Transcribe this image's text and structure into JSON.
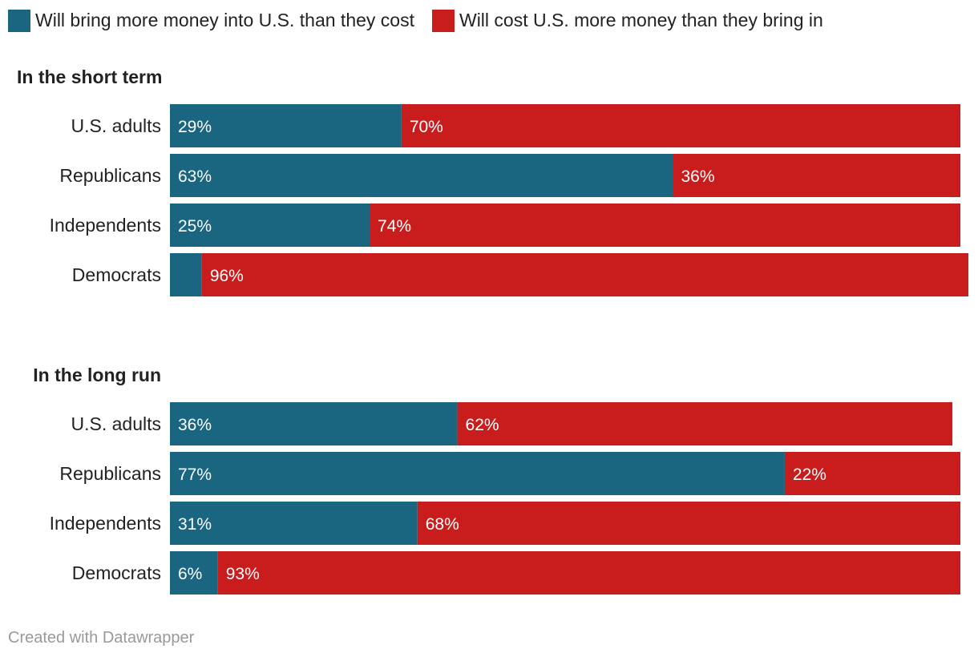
{
  "chart_data": {
    "type": "bar",
    "orientation": "horizontal",
    "stacked": true,
    "legend": [
      {
        "name": "Will bring more money into U.S. than they cost",
        "color": "#1a6580"
      },
      {
        "name": "Will cost U.S. more money than they bring in",
        "color": "#c91d1d"
      }
    ],
    "groups": [
      {
        "title": "In the short term",
        "categories": [
          "U.S. adults",
          "Republicans",
          "Independents",
          "Democrats"
        ],
        "series": [
          {
            "name": "Will bring more money into U.S. than they cost",
            "values": [
              29,
              63,
              25,
              4
            ],
            "labels": [
              "29%",
              "63%",
              "25%",
              ""
            ]
          },
          {
            "name": "Will cost U.S. more money than they bring in",
            "values": [
              70,
              36,
              74,
              96
            ],
            "labels": [
              "70%",
              "36%",
              "74%",
              "96%"
            ]
          }
        ]
      },
      {
        "title": "In the long run",
        "categories": [
          "U.S. adults",
          "Republicans",
          "Independents",
          "Democrats"
        ],
        "series": [
          {
            "name": "Will bring more money into U.S. than they cost",
            "values": [
              36,
              77,
              31,
              6
            ],
            "labels": [
              "36%",
              "77%",
              "31%",
              "6%"
            ]
          },
          {
            "name": "Will cost U.S. more money than they bring in",
            "values": [
              62,
              22,
              68,
              93
            ],
            "labels": [
              "62%",
              "22%",
              "68%",
              "93%"
            ]
          }
        ]
      }
    ],
    "xlim": [
      0,
      100
    ],
    "xlabel": "",
    "ylabel": "",
    "grid": false
  },
  "footer": {
    "credit": "Created with Datawrapper"
  }
}
